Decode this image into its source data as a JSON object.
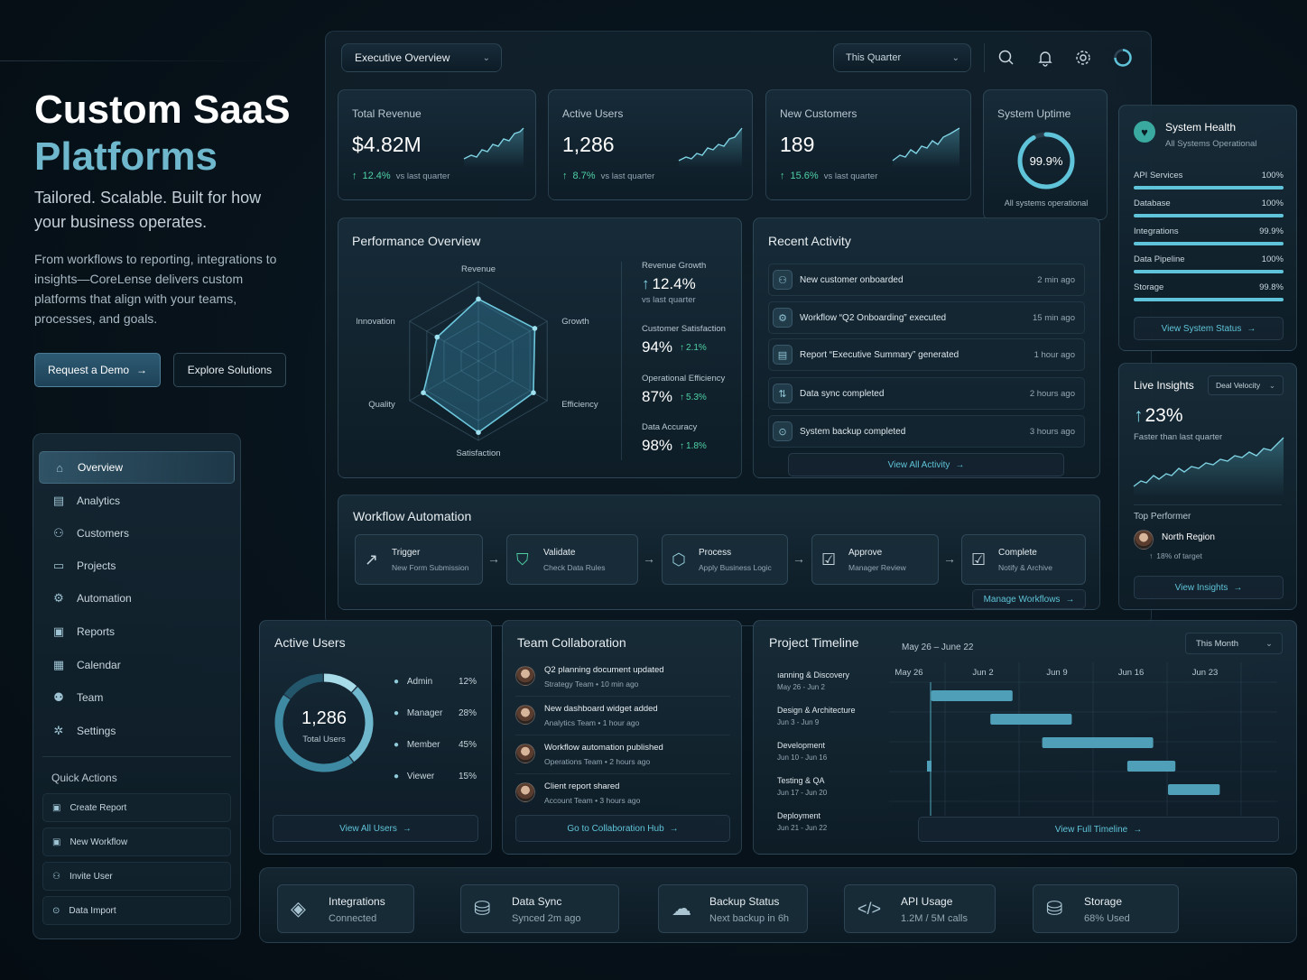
{
  "hero": {
    "title_line1": "Custom SaaS",
    "title_line2": "Platforms",
    "tagline": "Tailored. Scalable. Built for how your business operates.",
    "description": "From workflows to reporting, integrations to insights—CoreLense delivers custom platforms that align with your teams, processes, and goals.",
    "primary_cta": "Request a Demo",
    "secondary_cta": "Explore Solutions"
  },
  "sidebar": {
    "items": [
      {
        "label": "Overview",
        "icon": "home-icon"
      },
      {
        "label": "Analytics",
        "icon": "chart-icon"
      },
      {
        "label": "Customers",
        "icon": "users-icon"
      },
      {
        "label": "Projects",
        "icon": "folder-icon"
      },
      {
        "label": "Automation",
        "icon": "automation-icon"
      },
      {
        "label": "Reports",
        "icon": "report-icon"
      },
      {
        "label": "Calendar",
        "icon": "calendar-icon"
      },
      {
        "label": "Team",
        "icon": "team-icon"
      },
      {
        "label": "Settings",
        "icon": "gear-icon"
      }
    ],
    "quick_actions_title": "Quick Actions",
    "quick_actions": [
      "Create Report",
      "New Workflow",
      "Invite User",
      "Data Import"
    ]
  },
  "topbar": {
    "view_select": "Executive Overview",
    "period_select": "This Quarter"
  },
  "kpis": [
    {
      "label": "Total Revenue",
      "value": "$4.82M",
      "delta": "12.4%",
      "note": "vs last quarter"
    },
    {
      "label": "Active Users",
      "value": "1,286",
      "delta": "8.7%",
      "note": "vs last quarter"
    },
    {
      "label": "New Customers",
      "value": "189",
      "delta": "15.6%",
      "note": "vs last quarter"
    }
  ],
  "uptime": {
    "label": "System Uptime",
    "value": "99.9%",
    "percent": 99.9,
    "note": "All systems operational"
  },
  "performance": {
    "title": "Performance Overview",
    "axes": [
      "Revenue",
      "Growth",
      "Efficiency",
      "Satisfaction",
      "Quality",
      "Innovation"
    ],
    "values": [
      0.78,
      0.82,
      0.8,
      0.9,
      0.8,
      0.6
    ],
    "metrics": [
      {
        "label": "Revenue Growth",
        "value": "12.4%",
        "note": "vs last quarter"
      },
      {
        "label": "Customer Satisfaction",
        "value": "94%",
        "delta": "2.1%"
      },
      {
        "label": "Operational Efficiency",
        "value": "87%",
        "delta": "5.3%"
      },
      {
        "label": "Data Accuracy",
        "value": "98%",
        "delta": "1.8%"
      }
    ]
  },
  "activity": {
    "title": "Recent Activity",
    "items": [
      {
        "text": "New customer onboarded",
        "time": "2 min ago",
        "icon": "user-icon"
      },
      {
        "text": "Workflow “Q2 Onboarding” executed",
        "time": "15 min ago",
        "icon": "workflow-icon"
      },
      {
        "text": "Report “Executive Summary” generated",
        "time": "1 hour ago",
        "icon": "document-icon"
      },
      {
        "text": "Data sync completed",
        "time": "2 hours ago",
        "icon": "sync-icon"
      },
      {
        "text": "System backup completed",
        "time": "3 hours ago",
        "icon": "backup-icon"
      }
    ],
    "view_all": "View All Activity"
  },
  "health": {
    "title": "System Health",
    "subtitle": "All Systems Operational",
    "services": [
      {
        "name": "API Services",
        "value": "100%",
        "pct": 100
      },
      {
        "name": "Database",
        "value": "100%",
        "pct": 100
      },
      {
        "name": "Integrations",
        "value": "99.9%",
        "pct": 99.9
      },
      {
        "name": "Data Pipeline",
        "value": "100%",
        "pct": 100
      },
      {
        "name": "Storage",
        "value": "99.8%",
        "pct": 99.8
      }
    ],
    "view": "View System Status"
  },
  "insights": {
    "title": "Live Insights",
    "select": "Deal Velocity",
    "value": "23%",
    "note": "Faster than last quarter",
    "top_performer_label": "Top Performer",
    "performer": "North Region",
    "performer_note": "18% of target",
    "view": "View Insights"
  },
  "workflow": {
    "title": "Workflow Automation",
    "steps": [
      {
        "title": "Trigger",
        "sub": "New Form Submission",
        "icon": "trend-icon"
      },
      {
        "title": "Validate",
        "sub": "Check Data Rules",
        "icon": "shield-check-icon"
      },
      {
        "title": "Process",
        "sub": "Apply Business Logic",
        "icon": "cube-icon"
      },
      {
        "title": "Approve",
        "sub": "Manager Review",
        "icon": "approve-icon"
      },
      {
        "title": "Complete",
        "sub": "Notify & Archive",
        "icon": "complete-icon"
      }
    ],
    "manage": "Manage Workflows"
  },
  "active_users": {
    "title": "Active Users",
    "total": "1,286",
    "total_label": "Total Users",
    "roles": [
      {
        "name": "Admin",
        "pct": "12%",
        "value": 12
      },
      {
        "name": "Manager",
        "pct": "28%",
        "value": 28
      },
      {
        "name": "Member",
        "pct": "45%",
        "value": 45
      },
      {
        "name": "Viewer",
        "pct": "15%",
        "value": 15
      }
    ],
    "view": "View All Users"
  },
  "team": {
    "title": "Team Collaboration",
    "items": [
      {
        "text": "Q2 planning document updated",
        "meta": "Strategy Team • 10 min ago"
      },
      {
        "text": "New dashboard widget added",
        "meta": "Analytics Team • 1 hour ago"
      },
      {
        "text": "Workflow automation published",
        "meta": "Operations Team • 2 hours ago"
      },
      {
        "text": "Client report shared",
        "meta": "Account Team • 3 hours ago"
      }
    ],
    "view": "Go to Collaboration Hub"
  },
  "timeline": {
    "title": "Project Timeline",
    "range": "May 26 – June 22",
    "select": "This Month",
    "weeks": [
      "May 26",
      "Jun 2",
      "Jun 9",
      "Jun 16",
      "Jun 23"
    ],
    "phases": [
      {
        "name": "ıanning & Discovery",
        "dates": "May 26 - Jun 2",
        "start": 0.3,
        "end": 1.4
      },
      {
        "name": "Design & Architecture",
        "dates": "Jun 3 - Jun 9",
        "start": 1.1,
        "end": 2.2
      },
      {
        "name": "Development",
        "dates": "Jun 10 - Jun 16",
        "start": 1.8,
        "end": 3.3
      },
      {
        "name": "Testing & QA",
        "dates": "Jun 17 - Jun 20",
        "start": 2.95,
        "end": 3.6
      },
      {
        "name": "Deployment",
        "dates": "Jun 21 - Jun 22",
        "start": 3.5,
        "end": 4.2
      }
    ],
    "view": "View Full Timeline"
  },
  "bottom": [
    {
      "title": "Integrations",
      "sub": "Connected",
      "icon": "layers-icon",
      "accent": true
    },
    {
      "title": "Data Sync",
      "sub": "Synced 2m ago",
      "icon": "database-icon",
      "accent": false
    },
    {
      "title": "Backup Status",
      "sub": "Next backup in 6h",
      "icon": "cloud-icon",
      "accent": false
    },
    {
      "title": "API Usage",
      "sub": "1.2M / 5M calls",
      "icon": "code-icon",
      "accent": false
    },
    {
      "title": "Storage",
      "sub": "68% Used",
      "icon": "storage-icon",
      "accent": true
    }
  ],
  "colors": {
    "accent": "#5fc4d9",
    "positive": "#4fd1a5",
    "background": "#07121a"
  }
}
